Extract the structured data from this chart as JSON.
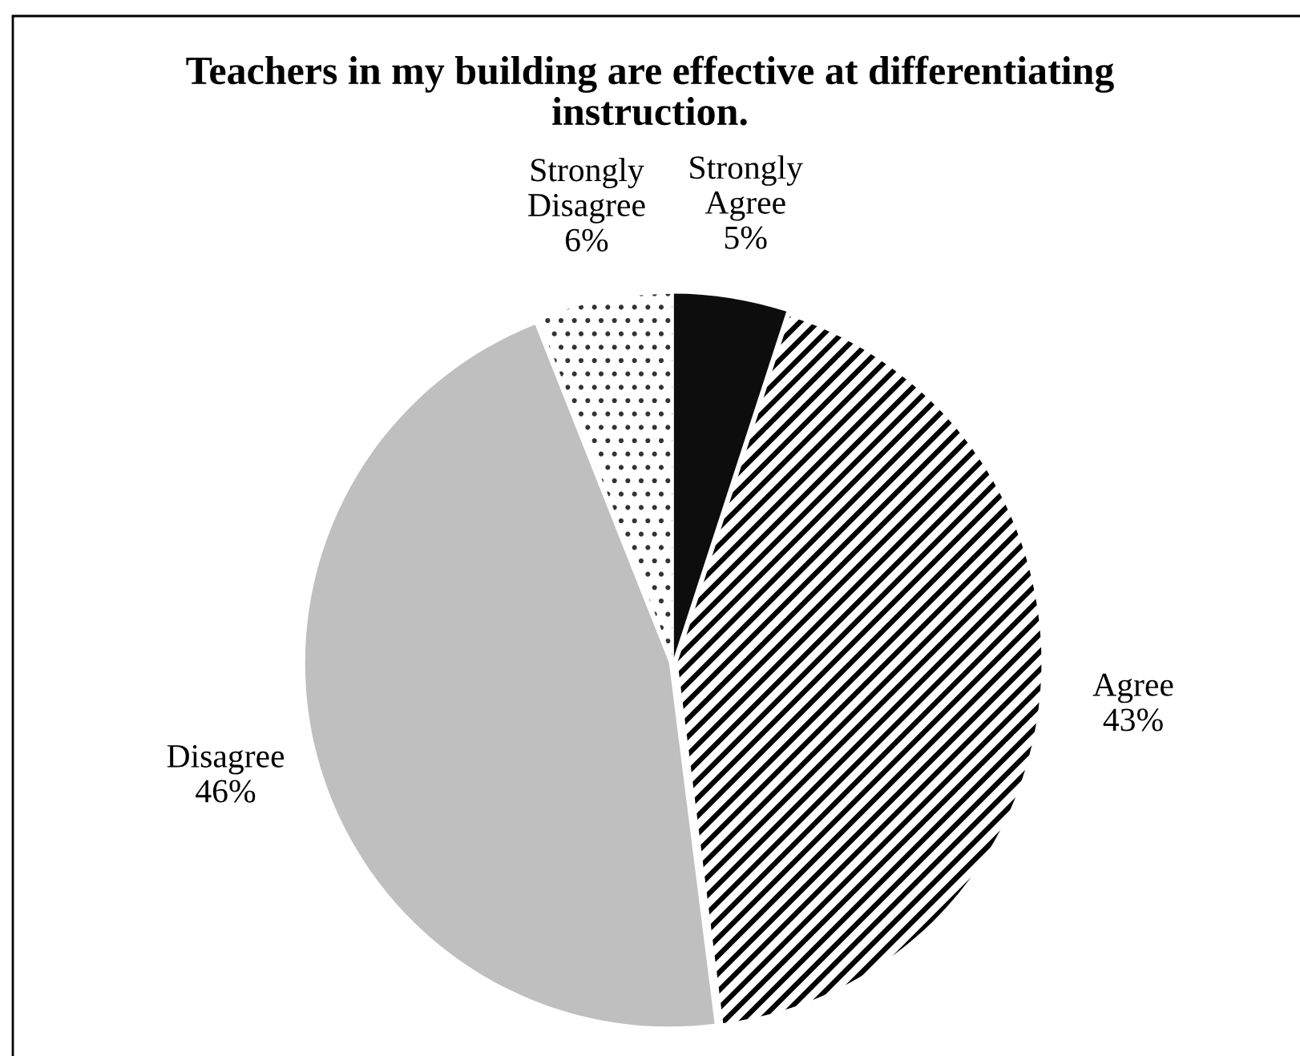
{
  "chart_data": {
    "type": "pie",
    "title": "Teachers in my building are effective at differentiating\ninstruction.",
    "categories": [
      "Strongly Agree",
      "Agree",
      "Disagree",
      "Strongly Disagree"
    ],
    "values": [
      5,
      43,
      46,
      6
    ],
    "value_labels": [
      "5%",
      "43%",
      "46%",
      "6%"
    ],
    "colors": [
      "#0d0d0d",
      "#ffffff",
      "#bfbfbf",
      "#ffffff"
    ],
    "legend": false
  }
}
